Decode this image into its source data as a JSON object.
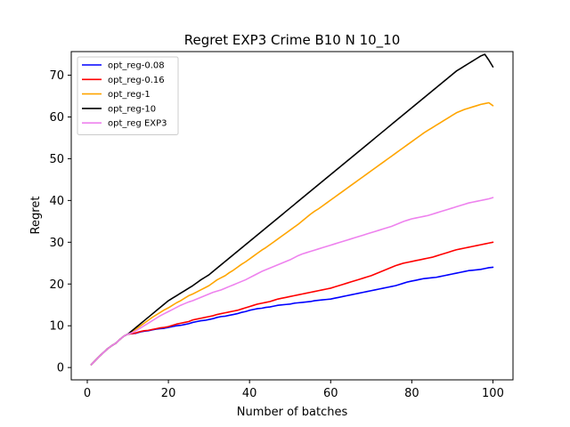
{
  "chart_data": {
    "type": "line",
    "title": "Regret EXP3 Crime B10 N 10_10",
    "xlabel": "Number of batches",
    "ylabel": "Regret",
    "xlim": [
      -3.95,
      104.95
    ],
    "ylim": [
      -2.95,
      75.65
    ],
    "xticks": [
      0,
      20,
      40,
      60,
      80,
      100
    ],
    "yticks": [
      0,
      10,
      20,
      30,
      40,
      50,
      60,
      70
    ],
    "grid": false,
    "legend_position": "top-left",
    "x": [
      1,
      2,
      3,
      4,
      5,
      6,
      7,
      8,
      9,
      10,
      11,
      12,
      13,
      14,
      15,
      16,
      17,
      18,
      19,
      20,
      21,
      22,
      23,
      24,
      25,
      26,
      27,
      28,
      29,
      30,
      31,
      32,
      33,
      34,
      35,
      36,
      37,
      38,
      39,
      40,
      41,
      42,
      43,
      44,
      45,
      46,
      47,
      48,
      49,
      50,
      51,
      52,
      53,
      54,
      55,
      56,
      57,
      58,
      59,
      60,
      61,
      62,
      63,
      64,
      65,
      66,
      67,
      68,
      69,
      70,
      71,
      72,
      73,
      74,
      75,
      76,
      77,
      78,
      79,
      80,
      81,
      82,
      83,
      84,
      85,
      86,
      87,
      88,
      89,
      90,
      91,
      92,
      93,
      94,
      95,
      96,
      97,
      98,
      99,
      100
    ],
    "series": [
      {
        "name": "opt_reg-0.08",
        "color": "#0000ff",
        "values": [
          0.7,
          1.7,
          2.7,
          3.6,
          4.5,
          5.2,
          5.8,
          6.7,
          7.5,
          8.0,
          8.1,
          8.2,
          8.5,
          8.7,
          8.8,
          9.0,
          9.2,
          9.3,
          9.4,
          9.6,
          9.8,
          10.0,
          10.1,
          10.3,
          10.5,
          10.8,
          11.0,
          11.2,
          11.3,
          11.5,
          11.7,
          12.0,
          12.2,
          12.3,
          12.5,
          12.7,
          12.9,
          13.2,
          13.4,
          13.7,
          13.9,
          14.1,
          14.2,
          14.4,
          14.5,
          14.7,
          14.9,
          15.0,
          15.1,
          15.2,
          15.4,
          15.5,
          15.6,
          15.7,
          15.8,
          16.0,
          16.1,
          16.2,
          16.3,
          16.4,
          16.6,
          16.8,
          17.0,
          17.2,
          17.4,
          17.6,
          17.8,
          18.0,
          18.2,
          18.4,
          18.6,
          18.8,
          19.0,
          19.2,
          19.4,
          19.6,
          19.9,
          20.2,
          20.5,
          20.7,
          20.9,
          21.1,
          21.3,
          21.4,
          21.5,
          21.6,
          21.8,
          22.0,
          22.2,
          22.4,
          22.6,
          22.8,
          23.0,
          23.2,
          23.3,
          23.4,
          23.5,
          23.7,
          23.9,
          24.0
        ]
      },
      {
        "name": "opt_reg-0.16",
        "color": "#ff0000",
        "values": [
          0.7,
          1.7,
          2.7,
          3.6,
          4.5,
          5.2,
          5.8,
          6.7,
          7.5,
          8.0,
          8.1,
          8.3,
          8.6,
          8.8,
          8.9,
          9.1,
          9.3,
          9.5,
          9.6,
          9.8,
          10.1,
          10.4,
          10.6,
          10.8,
          11.0,
          11.4,
          11.6,
          11.8,
          12.0,
          12.2,
          12.4,
          12.7,
          12.9,
          13.1,
          13.3,
          13.5,
          13.7,
          14.0,
          14.3,
          14.6,
          14.9,
          15.2,
          15.4,
          15.6,
          15.8,
          16.1,
          16.4,
          16.6,
          16.8,
          17.0,
          17.2,
          17.4,
          17.6,
          17.8,
          18.0,
          18.2,
          18.4,
          18.6,
          18.8,
          19.0,
          19.3,
          19.6,
          19.9,
          20.2,
          20.5,
          20.8,
          21.1,
          21.4,
          21.7,
          22.0,
          22.4,
          22.8,
          23.2,
          23.6,
          24.0,
          24.4,
          24.7,
          25.0,
          25.2,
          25.4,
          25.6,
          25.8,
          26.0,
          26.2,
          26.4,
          26.7,
          27.0,
          27.3,
          27.6,
          27.9,
          28.2,
          28.4,
          28.6,
          28.8,
          29.0,
          29.2,
          29.4,
          29.6,
          29.8,
          30.0
        ]
      },
      {
        "name": "opt_reg-1",
        "color": "#ffa500",
        "values": [
          0.7,
          1.7,
          2.7,
          3.6,
          4.5,
          5.2,
          5.8,
          6.7,
          7.5,
          8.0,
          8.5,
          9.2,
          9.9,
          10.6,
          11.3,
          12.0,
          12.6,
          13.2,
          13.8,
          14.3,
          14.9,
          15.5,
          16.0,
          16.6,
          17.2,
          17.6,
          18.1,
          18.6,
          19.1,
          19.6,
          20.3,
          21.0,
          21.5,
          22.0,
          22.7,
          23.3,
          24.0,
          24.7,
          25.3,
          26.0,
          26.7,
          27.4,
          28.1,
          28.7,
          29.4,
          30.1,
          30.8,
          31.5,
          32.2,
          32.9,
          33.6,
          34.3,
          35.1,
          35.9,
          36.7,
          37.4,
          38.0,
          38.7,
          39.4,
          40.1,
          40.8,
          41.5,
          42.2,
          42.9,
          43.6,
          44.3,
          45.0,
          45.7,
          46.4,
          47.1,
          47.8,
          48.5,
          49.2,
          49.9,
          50.6,
          51.3,
          52.0,
          52.7,
          53.4,
          54.1,
          54.8,
          55.5,
          56.2,
          56.8,
          57.4,
          58.0,
          58.6,
          59.2,
          59.8,
          60.4,
          61.0,
          61.4,
          61.8,
          62.1,
          62.4,
          62.7,
          63.0,
          63.2,
          63.4,
          62.7
        ]
      },
      {
        "name": "opt_reg-10",
        "color": "#000000",
        "values": [
          0.7,
          1.7,
          2.7,
          3.6,
          4.5,
          5.2,
          5.8,
          6.7,
          7.5,
          8.0,
          8.8,
          9.6,
          10.4,
          11.2,
          12.0,
          12.8,
          13.6,
          14.4,
          15.2,
          16.0,
          16.6,
          17.2,
          17.8,
          18.4,
          19.0,
          19.6,
          20.3,
          21.0,
          21.6,
          22.2,
          23.0,
          23.8,
          24.6,
          25.4,
          26.2,
          27.0,
          27.8,
          28.6,
          29.4,
          30.2,
          31.0,
          31.8,
          32.6,
          33.4,
          34.2,
          35.0,
          35.8,
          36.6,
          37.4,
          38.2,
          39.0,
          39.8,
          40.6,
          41.4,
          42.2,
          43.0,
          43.8,
          44.6,
          45.4,
          46.2,
          47.0,
          47.8,
          48.6,
          49.4,
          50.2,
          51.0,
          51.8,
          52.6,
          53.4,
          54.2,
          55.0,
          55.8,
          56.6,
          57.4,
          58.2,
          59.0,
          59.8,
          60.6,
          61.4,
          62.2,
          63.0,
          63.8,
          64.6,
          65.4,
          66.2,
          67.0,
          67.8,
          68.6,
          69.4,
          70.2,
          71.0,
          71.6,
          72.2,
          72.8,
          73.4,
          74.0,
          74.6,
          75.0,
          73.6,
          72.0
        ]
      },
      {
        "name": "opt_reg EXP3",
        "color": "#ee82ee",
        "values": [
          0.7,
          1.7,
          2.7,
          3.6,
          4.5,
          5.2,
          5.8,
          6.7,
          7.5,
          8.0,
          8.3,
          8.8,
          9.4,
          10.0,
          10.6,
          11.2,
          11.8,
          12.4,
          12.9,
          13.4,
          13.9,
          14.4,
          14.9,
          15.3,
          15.7,
          16.0,
          16.4,
          16.8,
          17.2,
          17.6,
          18.0,
          18.3,
          18.6,
          19.0,
          19.4,
          19.8,
          20.2,
          20.6,
          21.0,
          21.5,
          22.0,
          22.5,
          23.0,
          23.4,
          23.8,
          24.2,
          24.6,
          25.0,
          25.4,
          25.8,
          26.3,
          26.8,
          27.2,
          27.5,
          27.8,
          28.1,
          28.4,
          28.7,
          29.0,
          29.3,
          29.6,
          29.9,
          30.2,
          30.5,
          30.8,
          31.1,
          31.4,
          31.7,
          32.0,
          32.3,
          32.6,
          32.9,
          33.2,
          33.5,
          33.8,
          34.2,
          34.6,
          35.0,
          35.3,
          35.6,
          35.8,
          36.0,
          36.2,
          36.4,
          36.7,
          37.0,
          37.3,
          37.6,
          37.9,
          38.2,
          38.5,
          38.8,
          39.1,
          39.4,
          39.6,
          39.8,
          40.0,
          40.2,
          40.4,
          40.7
        ]
      }
    ]
  }
}
